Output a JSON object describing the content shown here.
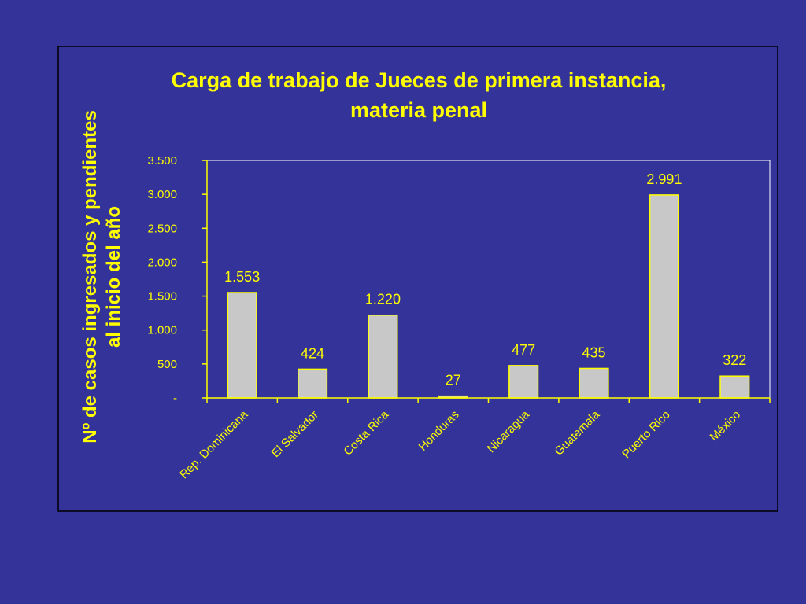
{
  "colors": {
    "background": "#333399",
    "text": "#FFFF00",
    "bar_fill": "#C8C8C8",
    "bar_stroke": "#FFFF00",
    "frame": "#000000",
    "axis": "#FFFF00"
  },
  "chart_data": {
    "type": "bar",
    "title_lines": [
      "Carga de trabajo de Jueces de primera instancia,",
      "materia penal"
    ],
    "ylabel_lines": [
      "Nº de casos ingresados y pendientes",
      "al inicio del año"
    ],
    "xlabel": "",
    "categories": [
      "Rep. Dominicana",
      "El Salvador",
      "Costa Rica",
      "Honduras",
      "Nicaragua",
      "Guatemala",
      "Puerto Rico",
      "México"
    ],
    "values": [
      1553,
      424,
      1220,
      27,
      477,
      435,
      2991,
      322
    ],
    "value_labels": [
      "1.553",
      "424",
      "1.220",
      "27",
      "477",
      "435",
      "2.991",
      "322"
    ],
    "ylim": [
      0,
      3500
    ],
    "yticks": [
      0,
      500,
      1000,
      1500,
      2000,
      2500,
      3000,
      3500
    ],
    "ytick_labels": [
      "-",
      "500",
      "1.000",
      "1.500",
      "2.000",
      "2.500",
      "3.000",
      "3.500"
    ],
    "grid": false,
    "legend": "none"
  }
}
